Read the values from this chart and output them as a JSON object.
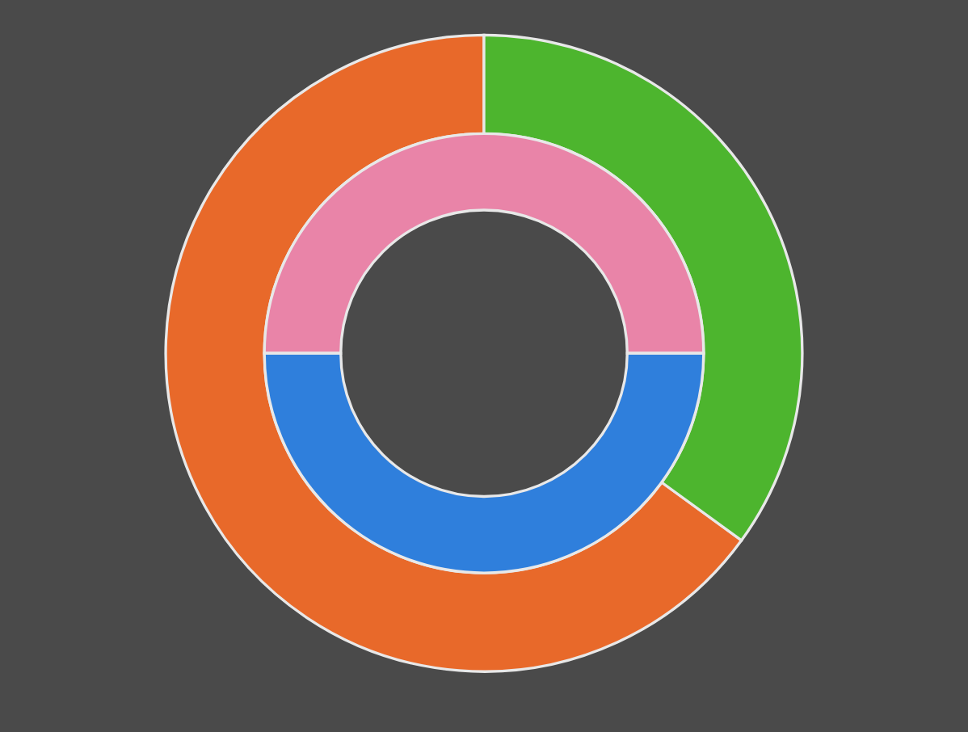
{
  "chart_data": {
    "type": "donut",
    "series": [
      {
        "values": [
          65,
          35
        ],
        "colors": [
          "#e8692a",
          "#4db52e"
        ]
      },
      {
        "values": [
          50,
          50
        ],
        "colors": [
          "#e984a8",
          "#2f7fdc"
        ]
      }
    ]
  }
}
